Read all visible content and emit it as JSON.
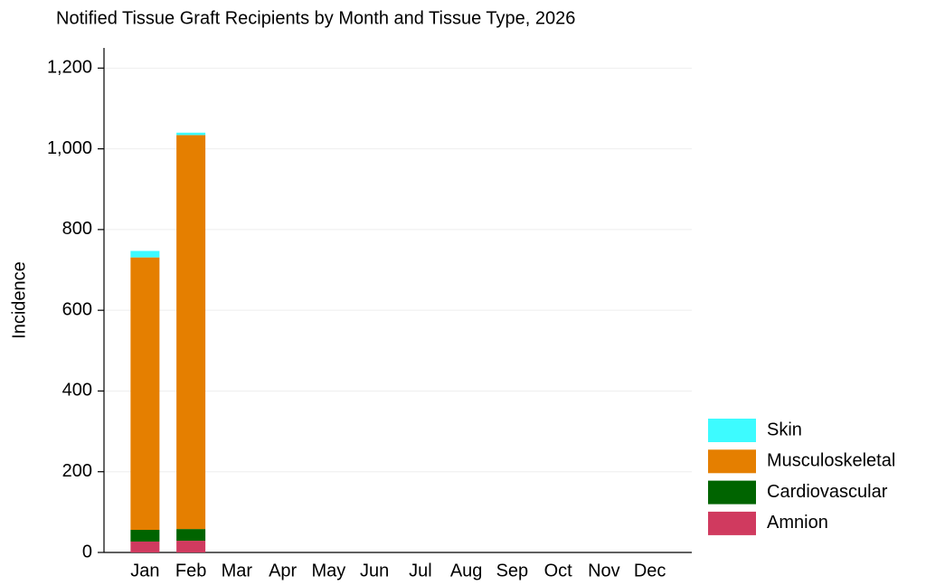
{
  "chart_data": {
    "type": "stacked_bar",
    "title": "Notified Tissue Graft Recipients by Month and Tissue Type, 2026",
    "y_label": "Incidence",
    "categories": [
      "Jan",
      "Feb",
      "Mar",
      "Apr",
      "May",
      "Jun",
      "Jul",
      "Aug",
      "Sep",
      "Oct",
      "Nov",
      "Dec"
    ],
    "series": [
      {
        "name": "Amnion",
        "color": "#d03a5f",
        "values": [
          27,
          29,
          null,
          null,
          null,
          null,
          null,
          null,
          null,
          null,
          null,
          null
        ]
      },
      {
        "name": "Cardiovascular",
        "color": "#006400",
        "values": [
          29,
          29,
          null,
          null,
          null,
          null,
          null,
          null,
          null,
          null,
          null,
          null
        ]
      },
      {
        "name": "Musculoskeletal",
        "color": "#e57f00",
        "values": [
          675,
          976,
          null,
          null,
          null,
          null,
          null,
          null,
          null,
          null,
          null,
          null
        ]
      },
      {
        "name": "Skin",
        "color": "#3dfbff",
        "values": [
          16,
          6,
          null,
          null,
          null,
          null,
          null,
          null,
          null,
          null,
          null,
          null
        ]
      }
    ],
    "ylim": [
      0,
      1250
    ],
    "yticks": [
      0,
      200,
      400,
      600,
      800,
      {
        "value": 1000,
        "label": "1,000"
      },
      {
        "value": 1200,
        "label": "1,200"
      }
    ],
    "grid": true,
    "legend": "right"
  }
}
